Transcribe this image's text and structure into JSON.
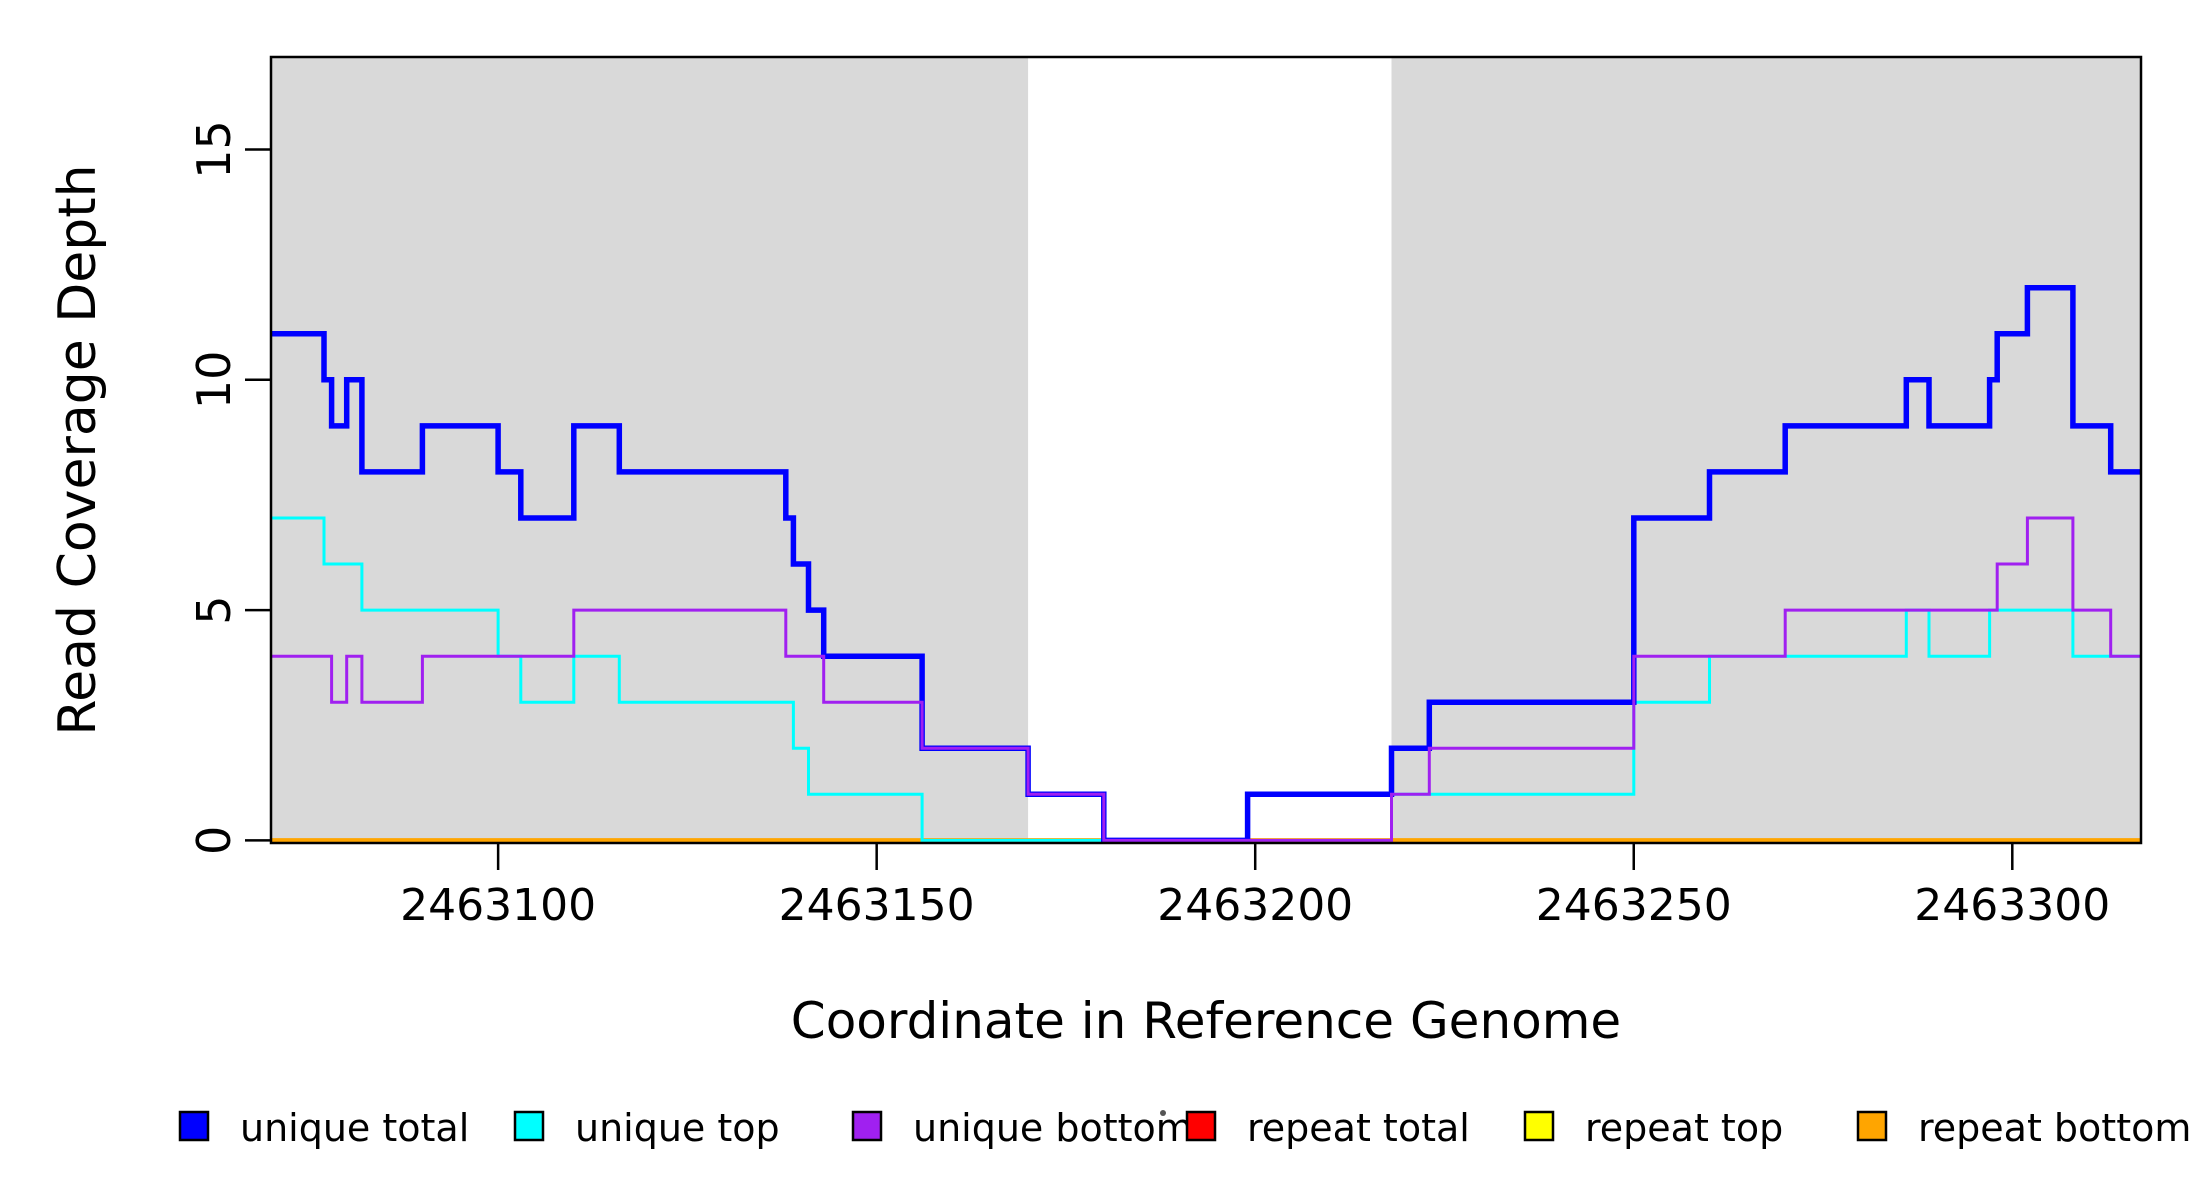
{
  "figure": {
    "kind": "read-coverage-step-plot"
  },
  "chart_data": {
    "type": "line",
    "subtype": "step",
    "title": "",
    "xlabel": "Coordinate in Reference Genome",
    "ylabel": "Read Coverage Depth",
    "xlim": [
      2463070,
      2463317
    ],
    "ylim": [
      0,
      17
    ],
    "x_ticks": [
      2463100,
      2463150,
      2463200,
      2463250,
      2463300
    ],
    "y_ticks": [
      0,
      5,
      10,
      15
    ],
    "grid": false,
    "plot_background": "#FFFFFF",
    "shade_color": "#D9D9D9",
    "shaded_regions": [
      [
        2463070,
        2463170
      ],
      [
        2463218,
        2463317
      ]
    ],
    "legend_position": "bottom",
    "series": [
      {
        "name": "unique total",
        "color": "#0000FF",
        "line_width": 5.5,
        "steps": [
          [
            2463070,
            11
          ],
          [
            2463077,
            10
          ],
          [
            2463078,
            9
          ],
          [
            2463080,
            10
          ],
          [
            2463082,
            8
          ],
          [
            2463090,
            9
          ],
          [
            2463100,
            8
          ],
          [
            2463103,
            7
          ],
          [
            2463110,
            9
          ],
          [
            2463116,
            8
          ],
          [
            2463138,
            7
          ],
          [
            2463139,
            6
          ],
          [
            2463141,
            5
          ],
          [
            2463143,
            4
          ],
          [
            2463156,
            2
          ],
          [
            2463170,
            1
          ],
          [
            2463180,
            0
          ],
          [
            2463199,
            1
          ],
          [
            2463218,
            2
          ],
          [
            2463223,
            3
          ],
          [
            2463250,
            7
          ],
          [
            2463260,
            8
          ],
          [
            2463270,
            9
          ],
          [
            2463286,
            10
          ],
          [
            2463289,
            9
          ],
          [
            2463297,
            10
          ],
          [
            2463298,
            11
          ],
          [
            2463302,
            12
          ],
          [
            2463308,
            9
          ],
          [
            2463313,
            8
          ]
        ]
      },
      {
        "name": "unique top",
        "color": "#00FFFF",
        "line_width": 3,
        "steps": [
          [
            2463070,
            7
          ],
          [
            2463077,
            6
          ],
          [
            2463082,
            5
          ],
          [
            2463100,
            4
          ],
          [
            2463103,
            3
          ],
          [
            2463110,
            4
          ],
          [
            2463116,
            3
          ],
          [
            2463139,
            2
          ],
          [
            2463141,
            1
          ],
          [
            2463156,
            0
          ],
          [
            2463199,
            1
          ],
          [
            2463250,
            3
          ],
          [
            2463260,
            4
          ],
          [
            2463286,
            5
          ],
          [
            2463289,
            4
          ],
          [
            2463297,
            5
          ],
          [
            2463308,
            4
          ]
        ]
      },
      {
        "name": "unique bottom",
        "color": "#A020F0",
        "line_width": 3,
        "steps": [
          [
            2463070,
            4
          ],
          [
            2463078,
            3
          ],
          [
            2463080,
            4
          ],
          [
            2463082,
            3
          ],
          [
            2463090,
            4
          ],
          [
            2463110,
            5
          ],
          [
            2463138,
            4
          ],
          [
            2463143,
            3
          ],
          [
            2463156,
            2
          ],
          [
            2463170,
            1
          ],
          [
            2463180,
            0
          ],
          [
            2463218,
            1
          ],
          [
            2463223,
            2
          ],
          [
            2463250,
            4
          ],
          [
            2463270,
            5
          ],
          [
            2463298,
            6
          ],
          [
            2463302,
            7
          ],
          [
            2463308,
            5
          ],
          [
            2463313,
            4
          ]
        ]
      },
      {
        "name": "repeat total",
        "color": "#FF0000",
        "line_width": 3,
        "steps": [
          [
            2463070,
            0
          ]
        ]
      },
      {
        "name": "repeat top",
        "color": "#FFFF00",
        "line_width": 3,
        "steps": [
          [
            2463070,
            0
          ]
        ]
      },
      {
        "name": "repeat bottom",
        "color": "#FFA500",
        "line_width": 4.5,
        "steps": [
          [
            2463070,
            0
          ]
        ]
      }
    ]
  }
}
